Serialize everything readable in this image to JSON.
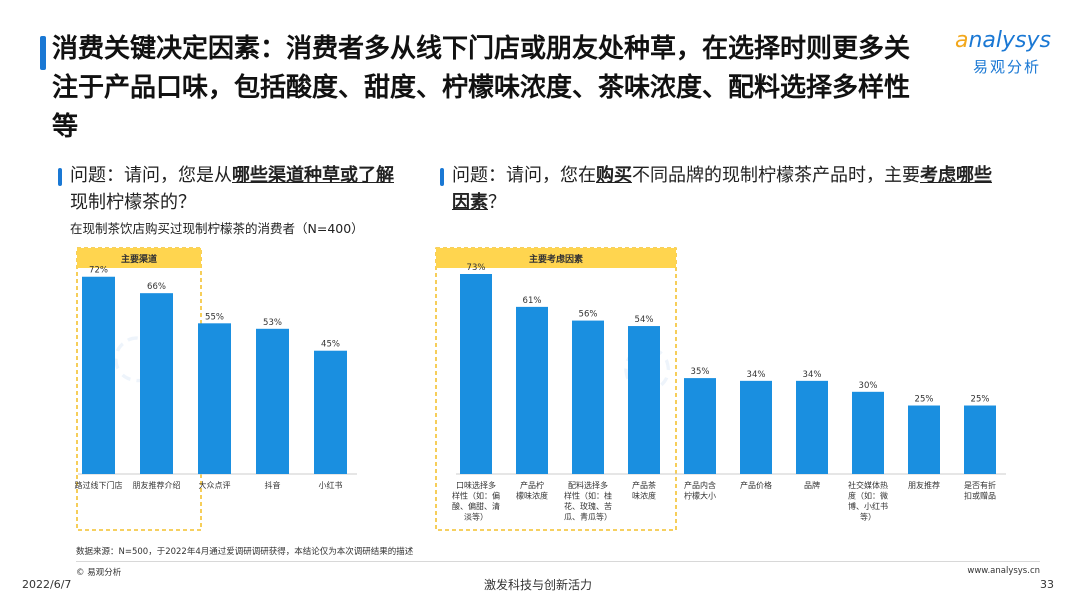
{
  "title": "消费关键决定因素：消费者多从线下门店或朋友处种草，在选择时则更多关注于产品口味，包括酸度、甜度、柠檬味浓度、茶味浓度、配料选择多样性等",
  "logo": {
    "en_prefix": "a",
    "en_rest": "nalysys",
    "cn": "易观分析"
  },
  "questions": [
    {
      "pre": "问题：请问，您是从",
      "em": "哪些渠道种草或了解",
      "post": "现制柠檬茶的？"
    },
    {
      "pre": "问题：请问，您在",
      "em1": "购买",
      "mid": "不同品牌的现制柠檬茶产品时，主要",
      "em2": "考虑哪些因素",
      "post": "？"
    }
  ],
  "subtitle": "在现制茶饮店购买过现制柠檬茶的消费者（N=400）",
  "chart_data": [
    {
      "type": "bar",
      "highlight_label": "主要渠道",
      "highlight_count": 2,
      "categories": [
        "路过线下门店",
        "朋友推荐介绍",
        "大众点评",
        "抖音",
        "小红书"
      ],
      "values": [
        72,
        66,
        55,
        53,
        45
      ],
      "value_labels": [
        "72%",
        "66%",
        "55%",
        "53%",
        "45%"
      ],
      "ylim": [
        0,
        80
      ],
      "color": "#1a8fe0"
    },
    {
      "type": "bar",
      "highlight_label": "主要考虑因素",
      "highlight_count": 4,
      "categories": [
        [
          "口味选择多",
          "样性（如：偏",
          "酸、偏甜、清",
          "淡等）"
        ],
        [
          "产品柠",
          "檬味浓度"
        ],
        [
          "配料选择多",
          "样性（如：桂",
          "花、玫瑰、苦",
          "瓜、青瓜等）"
        ],
        [
          "产品茶",
          "味浓度"
        ],
        [
          "产品内含",
          "柠檬大小"
        ],
        [
          "产品价格"
        ],
        [
          "品牌"
        ],
        [
          "社交媒体热",
          "度（如：微",
          "博、小红书",
          "等）"
        ],
        [
          "朋友推荐"
        ],
        [
          "是否有折",
          "扣或赠品"
        ]
      ],
      "values": [
        73,
        61,
        56,
        54,
        35,
        34,
        34,
        30,
        25,
        25
      ],
      "value_labels": [
        "73%",
        "61%",
        "56%",
        "54%",
        "35%",
        "34%",
        "34%",
        "30%",
        "25%",
        "25%"
      ],
      "ylim": [
        0,
        80
      ],
      "color": "#1a8fe0"
    }
  ],
  "footnote": "数据来源：N=500，于2022年4月通过爱调研调研获得，本结论仅为本次调研结果的描述",
  "copyright": "© 易观分析",
  "website": "www.analysys.cn",
  "date": "2022/6/7",
  "slogan": "激发科技与创新活力",
  "page_number": "33",
  "colors": {
    "accent": "#1a78d4",
    "bar": "#1a8fe0",
    "highlight": "#ffd54f",
    "highlight_border": "#f0b400"
  }
}
